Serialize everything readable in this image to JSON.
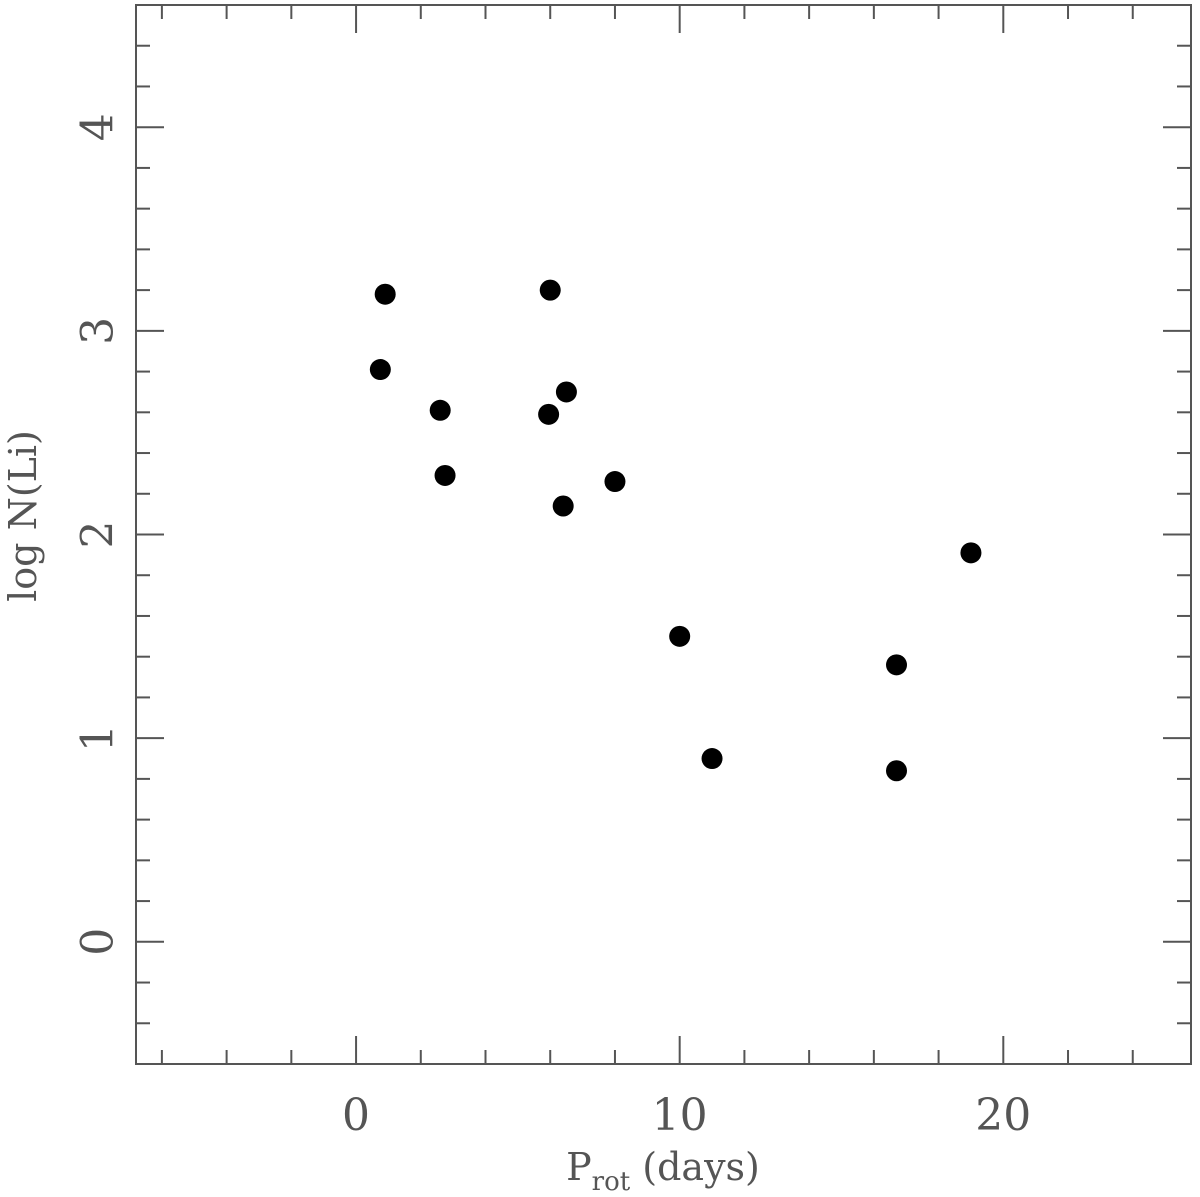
{
  "chart_data": {
    "type": "scatter",
    "title": "",
    "xlabel": "P",
    "xlabel_subscript": "rot",
    "xlabel_suffix": " (days)",
    "ylabel": "log N(Li)",
    "xlim": [
      -6.8,
      25.8
    ],
    "ylim": [
      -0.6,
      4.6
    ],
    "x_ticks": [
      0,
      10,
      20
    ],
    "y_ticks": [
      0,
      1,
      2,
      3,
      4
    ],
    "x_tick_labels": [
      "0",
      "10",
      "20"
    ],
    "y_tick_labels": [
      "0",
      "1",
      "2",
      "3",
      "4"
    ],
    "x_minor_step": 2,
    "y_minor_step": 0.2,
    "grid": false,
    "marker_color": "#000000",
    "axis_color": "#555555",
    "series": [
      {
        "points": [
          {
            "x": 0.9,
            "y": 3.18
          },
          {
            "x": 0.75,
            "y": 2.81
          },
          {
            "x": 2.6,
            "y": 2.61
          },
          {
            "x": 2.75,
            "y": 2.29
          },
          {
            "x": 6.0,
            "y": 3.2
          },
          {
            "x": 6.5,
            "y": 2.7
          },
          {
            "x": 5.95,
            "y": 2.59
          },
          {
            "x": 6.4,
            "y": 2.14
          },
          {
            "x": 8.0,
            "y": 2.26
          },
          {
            "x": 10.0,
            "y": 1.5
          },
          {
            "x": 11.0,
            "y": 0.9
          },
          {
            "x": 16.7,
            "y": 1.36
          },
          {
            "x": 16.7,
            "y": 0.84
          },
          {
            "x": 19.0,
            "y": 1.91
          }
        ]
      }
    ]
  }
}
